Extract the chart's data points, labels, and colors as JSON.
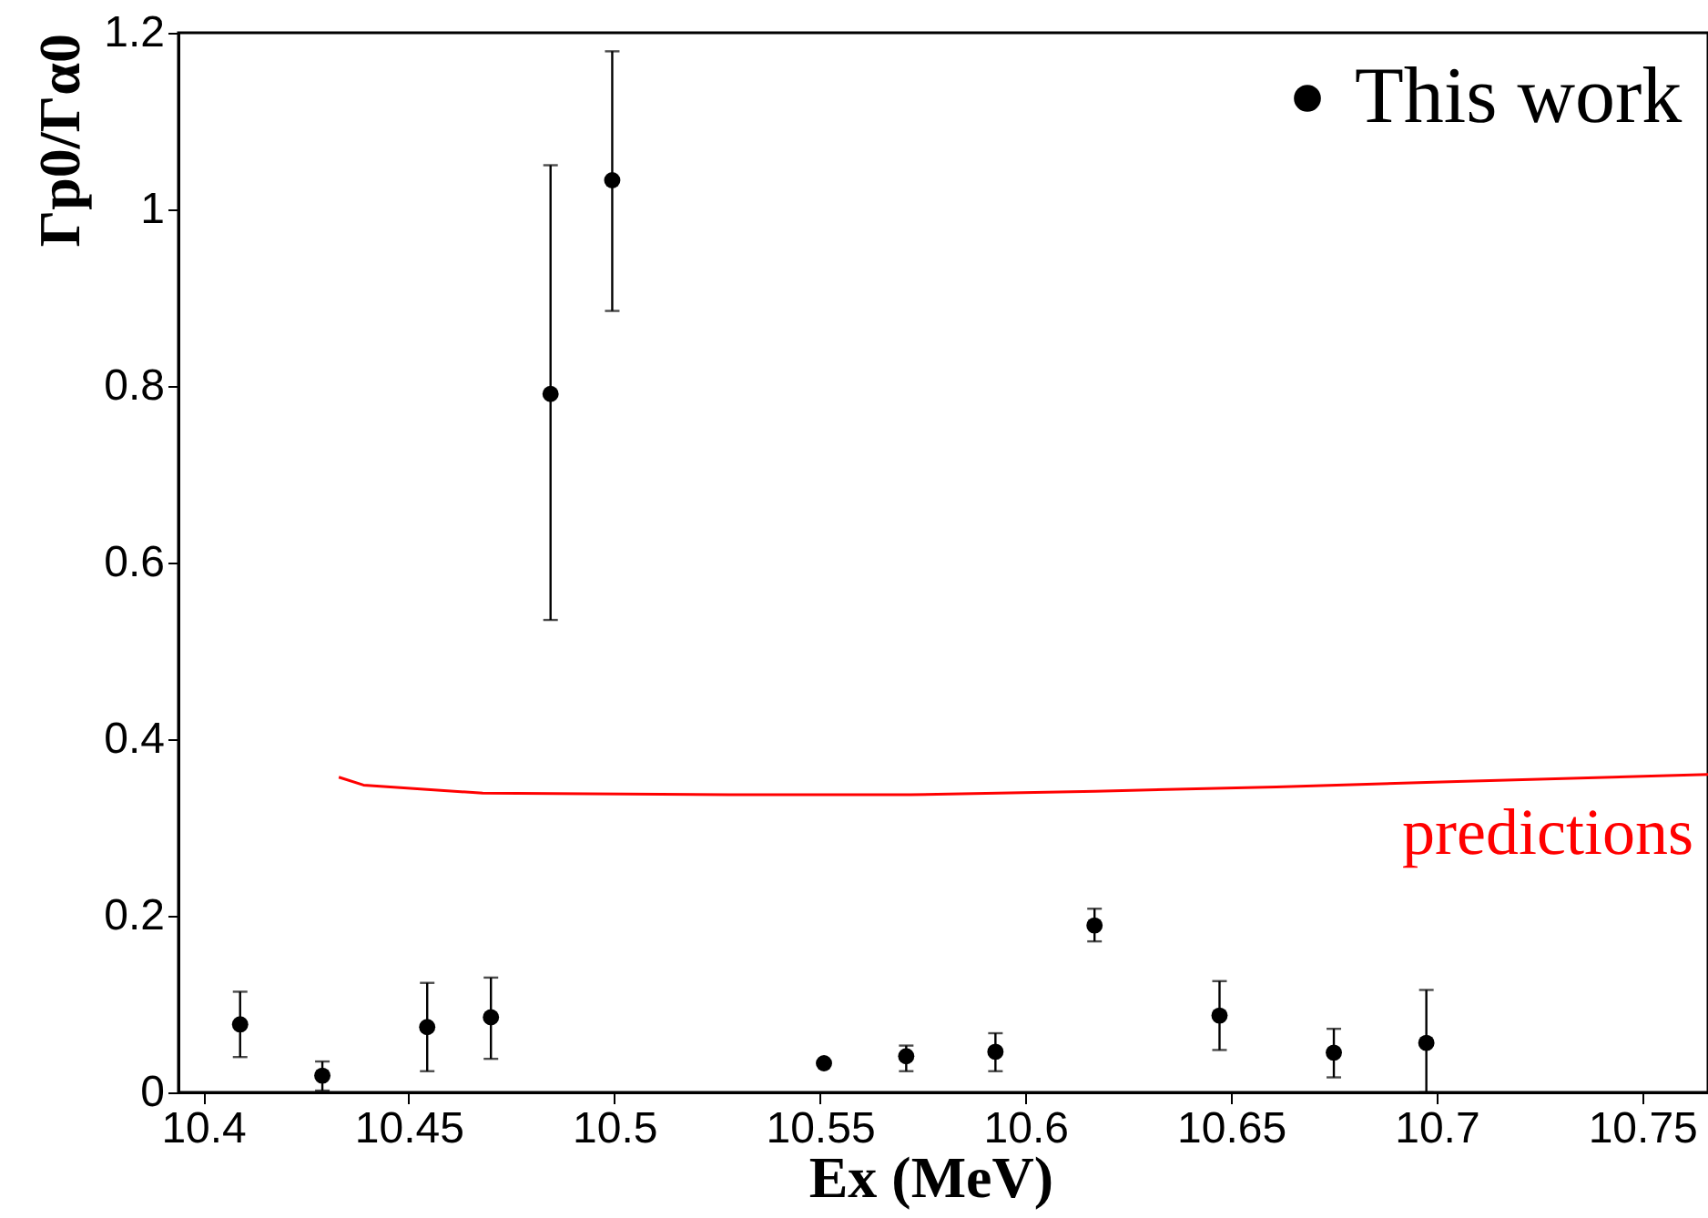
{
  "chart_data": {
    "type": "scatter",
    "xlabel": "Ex (MeV)",
    "ylabel": "Γp0/Γα0",
    "xlim": [
      10.394,
      10.766
    ],
    "xticks": [
      10.4,
      10.45,
      10.5,
      10.55,
      10.6,
      10.65,
      10.7,
      10.75
    ],
    "ylim": [
      0,
      1.2
    ],
    "yticks": [
      0,
      0.2,
      0.4,
      0.6,
      0.8,
      1,
      1.2
    ],
    "grid": false,
    "legend": "top right",
    "series": [
      {
        "name": "This work",
        "color": "#000000",
        "marker": "circle",
        "x": [
          10.409,
          10.429,
          10.4545,
          10.47,
          10.4845,
          10.4995,
          10.551,
          10.571,
          10.5927,
          10.6168,
          10.6472,
          10.675,
          10.6975
        ],
        "values": [
          0.077,
          0.019,
          0.074,
          0.085,
          0.791,
          1.033,
          0.033,
          0.041,
          0.046,
          0.189,
          0.087,
          0.045,
          0.056
        ],
        "errors": [
          [
            0.04,
            0.114
          ],
          [
            0.002,
            0.035
          ],
          [
            0.024,
            0.124
          ],
          [
            0.038,
            0.13
          ],
          [
            0.535,
            1.05
          ],
          [
            0.885,
            1.179
          ],
          null,
          [
            0.024,
            0.053
          ],
          [
            0.024,
            0.067
          ],
          [
            0.171,
            0.208
          ],
          [
            0.048,
            0.126
          ],
          [
            0.017,
            0.072
          ],
          [
            0.0,
            0.116
          ]
        ]
      },
      {
        "type": "line",
        "color": "#ff0000",
        "line_style": "solid",
        "x": [
          10.433,
          10.439,
          10.4545,
          10.468,
          10.528,
          10.572,
          10.617,
          10.661,
          10.705,
          10.766
        ],
        "values": [
          0.357,
          0.348,
          0.343,
          0.339,
          0.337,
          0.337,
          0.341,
          0.346,
          0.352,
          0.36
        ]
      }
    ],
    "annotations": [
      "predictions"
    ]
  }
}
